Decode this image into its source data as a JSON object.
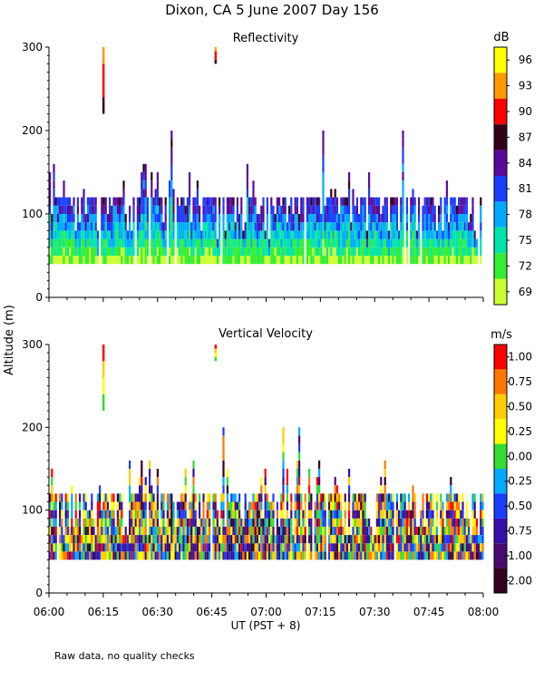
{
  "title": "Dixon, CA  5 June 2007  Day 156",
  "ylabel": "Altitude (m)",
  "xlabel": "UT  (PST + 8)",
  "note": "Raw data, no quality checks",
  "x_tick_labels": [
    "06:00",
    "06:15",
    "06:30",
    "06:45",
    "07:00",
    "07:15",
    "07:30",
    "07:45",
    "08:00"
  ],
  "chart_data": [
    {
      "type": "heatmap",
      "title": "Reflectivity",
      "xlabel": "UT  (PST + 8)",
      "ylabel": "Altitude (m)",
      "xlim": [
        "06:00",
        "08:00"
      ],
      "ylim": [
        0,
        300
      ],
      "y_ticks": [
        0,
        100,
        200,
        300
      ],
      "colorbar": {
        "unit": "dB",
        "tick_labels": [
          "96",
          "93",
          "90",
          "87",
          "84",
          "81",
          "78",
          "75",
          "72",
          "69"
        ],
        "colors": [
          "#ffff00",
          "#ff9900",
          "#ff0000",
          "#33001a",
          "#5a0a99",
          "#1a3cff",
          "#00aaff",
          "#00e5aa",
          "#33ee33",
          "#ccff33"
        ]
      },
      "features": {
        "echo_band_bottom_m": 40,
        "echo_band_top_m": 120,
        "max_echo_top_m": 200,
        "isolated_echoes": [
          {
            "time": "06:15",
            "alt_m": [
              220,
              300
            ],
            "value_db": [
              87,
              93
            ]
          },
          {
            "time": "06:46",
            "alt_m": [
              280,
              300
            ],
            "value_db": [
              90,
              93
            ]
          }
        ]
      }
    },
    {
      "type": "heatmap",
      "title": "Vertical Velocity",
      "xlabel": "UT  (PST + 8)",
      "ylabel": "Altitude (m)",
      "xlim": [
        "06:00",
        "08:00"
      ],
      "ylim": [
        0,
        300
      ],
      "y_ticks": [
        0,
        100,
        200,
        300
      ],
      "colorbar": {
        "unit": "m/s",
        "tick_labels": [
          "1.00",
          "0.75",
          "0.50",
          "0.25",
          "0.00",
          "-0.25",
          "-0.50",
          "-0.75",
          "-1.00",
          "-2.00"
        ],
        "colors": [
          "#ff0000",
          "#ff7700",
          "#ffcc00",
          "#ffff00",
          "#33dd33",
          "#00aaff",
          "#1a3cff",
          "#3311aa",
          "#4a0a70",
          "#330022"
        ]
      },
      "features": {
        "echo_band_bottom_m": 40,
        "echo_band_top_m": 120,
        "max_echo_top_m": 200,
        "isolated_echoes": [
          {
            "time": "06:15",
            "alt_m": [
              220,
              300
            ],
            "value_ms": [
              0.25,
              0.75
            ]
          },
          {
            "time": "06:46",
            "alt_m": [
              280,
              300
            ],
            "value_ms": [
              0.5,
              1.0
            ]
          }
        ]
      }
    }
  ]
}
